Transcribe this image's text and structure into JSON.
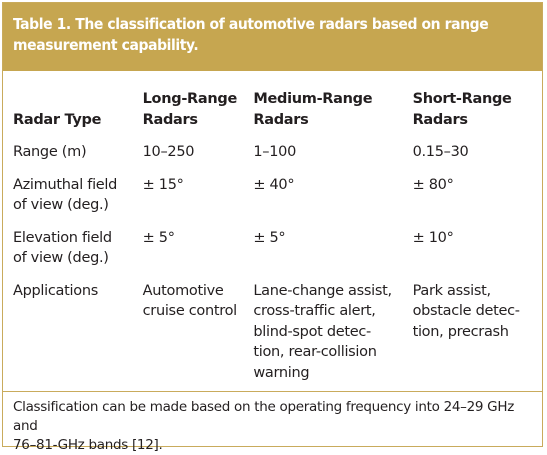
{
  "header": {
    "title": "Table 1. The classification of automotive radars based on range\nmeasurement capability."
  },
  "table": {
    "columns": [
      "Radar Type",
      "Long-Range\nRadars",
      "Medium-Range\nRadars",
      "Short-Range\nRadars"
    ],
    "rows": [
      [
        "Range (m)",
        "10–250",
        "1–100",
        "0.15–30"
      ],
      [
        "Azimuthal field\nof view (deg.)",
        "± 15°",
        "± 40°",
        "± 80°"
      ],
      [
        "Elevation field\nof view (deg.)",
        "± 5°",
        "± 5°",
        "± 10°"
      ],
      [
        "Applications",
        "Automotive\ncruise control",
        "Lane-change assist,\ncross-traffic alert,\nblind-spot detec-\ntion, rear-collision\nwarning",
        "Park assist,\nobstacle detec-\ntion, precrash"
      ]
    ]
  },
  "footnote": "Classification can be made based on the operating frequency into 24–29 GHz and\n76–81-GHz bands [12]."
}
